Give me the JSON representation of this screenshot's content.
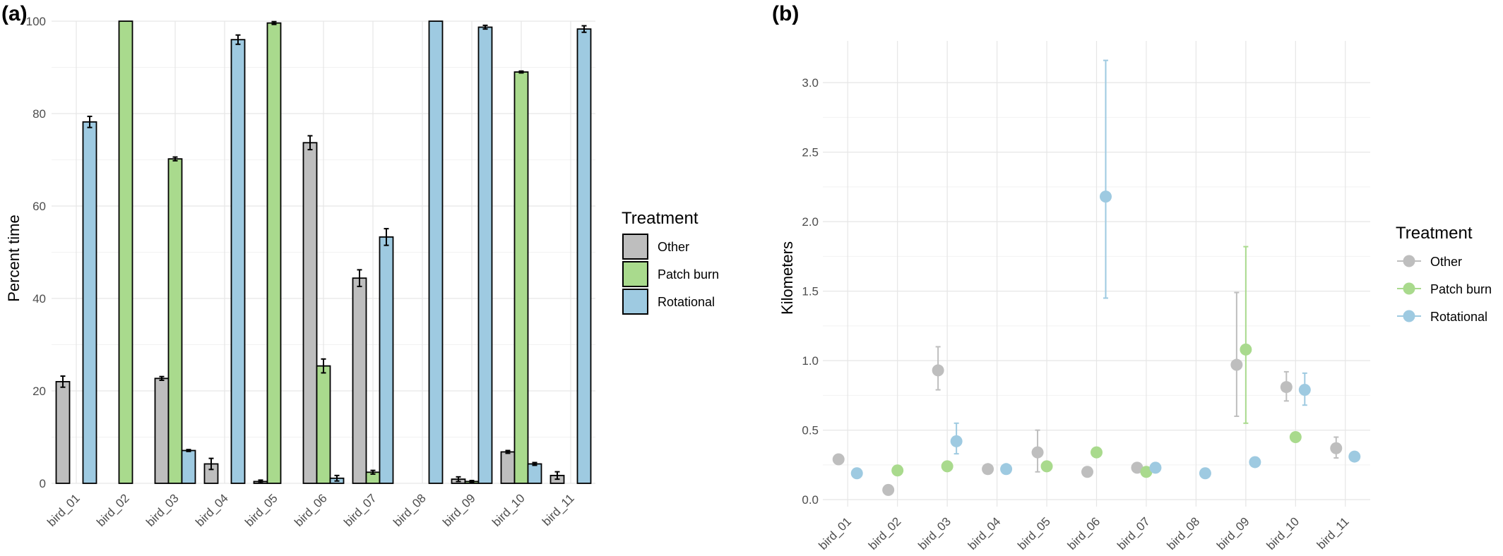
{
  "colors": {
    "Other": "#bebebe",
    "Patch burn": "#a9da8d",
    "Rotational": "#9ecae1"
  },
  "chart_data": [
    {
      "panel": "(a)",
      "type": "bar",
      "ylabel": "Percent time",
      "ylim": [
        0,
        100
      ],
      "yticks": [
        0,
        20,
        40,
        60,
        80,
        100
      ],
      "grid": true,
      "legend": {
        "title": "Treatment",
        "position": "right"
      },
      "categories": [
        "bird_01",
        "bird_02",
        "bird_03",
        "bird_04",
        "bird_05",
        "bird_06",
        "bird_07",
        "bird_08",
        "bird_09",
        "bird_10",
        "bird_11"
      ],
      "series": [
        {
          "name": "Other",
          "values": [
            22,
            0,
            22.7,
            4.2,
            0.4,
            73.7,
            44.4,
            0,
            0.9,
            6.8,
            1.7
          ],
          "errors": [
            1.2,
            0,
            0.4,
            1.2,
            0.3,
            1.5,
            1.8,
            0,
            0.5,
            0.3,
            0.8
          ]
        },
        {
          "name": "Patch burn",
          "values": [
            0,
            100,
            70.2,
            0,
            99.6,
            25.4,
            2.4,
            0,
            0.4,
            89,
            0
          ],
          "errors": [
            0,
            0,
            0.4,
            0,
            0.3,
            1.5,
            0.4,
            0,
            0.2,
            0.2,
            0
          ]
        },
        {
          "name": "Rotational",
          "values": [
            78.2,
            0,
            7.1,
            96,
            0,
            1.1,
            53.3,
            100,
            98.7,
            4.2,
            98.3
          ],
          "errors": [
            1.2,
            0,
            0.2,
            1,
            0,
            0.6,
            1.8,
            0,
            0.4,
            0.3,
            0.7
          ]
        }
      ]
    },
    {
      "panel": "(b)",
      "type": "scatter",
      "ylabel": "Kilometers",
      "ylim": [
        -0.05,
        3.3
      ],
      "yticks": [
        0,
        0.5,
        1,
        1.5,
        2,
        2.5,
        3
      ],
      "ytick_labels": [
        "0.0",
        "0.5",
        "1.0",
        "1.5",
        "2.0",
        "2.5",
        "3.0"
      ],
      "grid": true,
      "legend": {
        "title": "Treatment",
        "position": "right"
      },
      "categories": [
        "bird_01",
        "bird_02",
        "bird_03",
        "bird_04",
        "bird_05",
        "bird_06",
        "bird_07",
        "bird_08",
        "bird_09",
        "bird_10",
        "bird_11"
      ],
      "series": [
        {
          "name": "Other",
          "values": [
            0.29,
            0.07,
            0.93,
            0.22,
            0.34,
            0.2,
            0.23,
            null,
            0.97,
            0.81,
            0.37
          ],
          "err_low": [
            null,
            null,
            0.79,
            null,
            0.2,
            null,
            null,
            null,
            0.6,
            0.71,
            0.3
          ],
          "err_high": [
            null,
            null,
            1.1,
            null,
            0.5,
            null,
            null,
            null,
            1.49,
            0.92,
            0.45
          ]
        },
        {
          "name": "Patch burn",
          "values": [
            null,
            0.21,
            0.24,
            null,
            0.24,
            0.34,
            0.2,
            null,
            1.08,
            0.45,
            null
          ],
          "err_low": [
            null,
            null,
            null,
            null,
            null,
            null,
            null,
            null,
            0.55,
            null,
            null
          ],
          "err_high": [
            null,
            null,
            null,
            null,
            null,
            null,
            null,
            null,
            1.82,
            null,
            null
          ]
        },
        {
          "name": "Rotational",
          "values": [
            0.19,
            null,
            0.42,
            0.22,
            null,
            2.18,
            0.23,
            0.19,
            0.27,
            0.79,
            0.31
          ],
          "err_low": [
            null,
            null,
            0.33,
            null,
            null,
            1.45,
            null,
            null,
            null,
            0.68,
            null
          ],
          "err_high": [
            null,
            null,
            0.55,
            null,
            null,
            3.16,
            null,
            null,
            null,
            0.91,
            null
          ]
        }
      ]
    }
  ]
}
